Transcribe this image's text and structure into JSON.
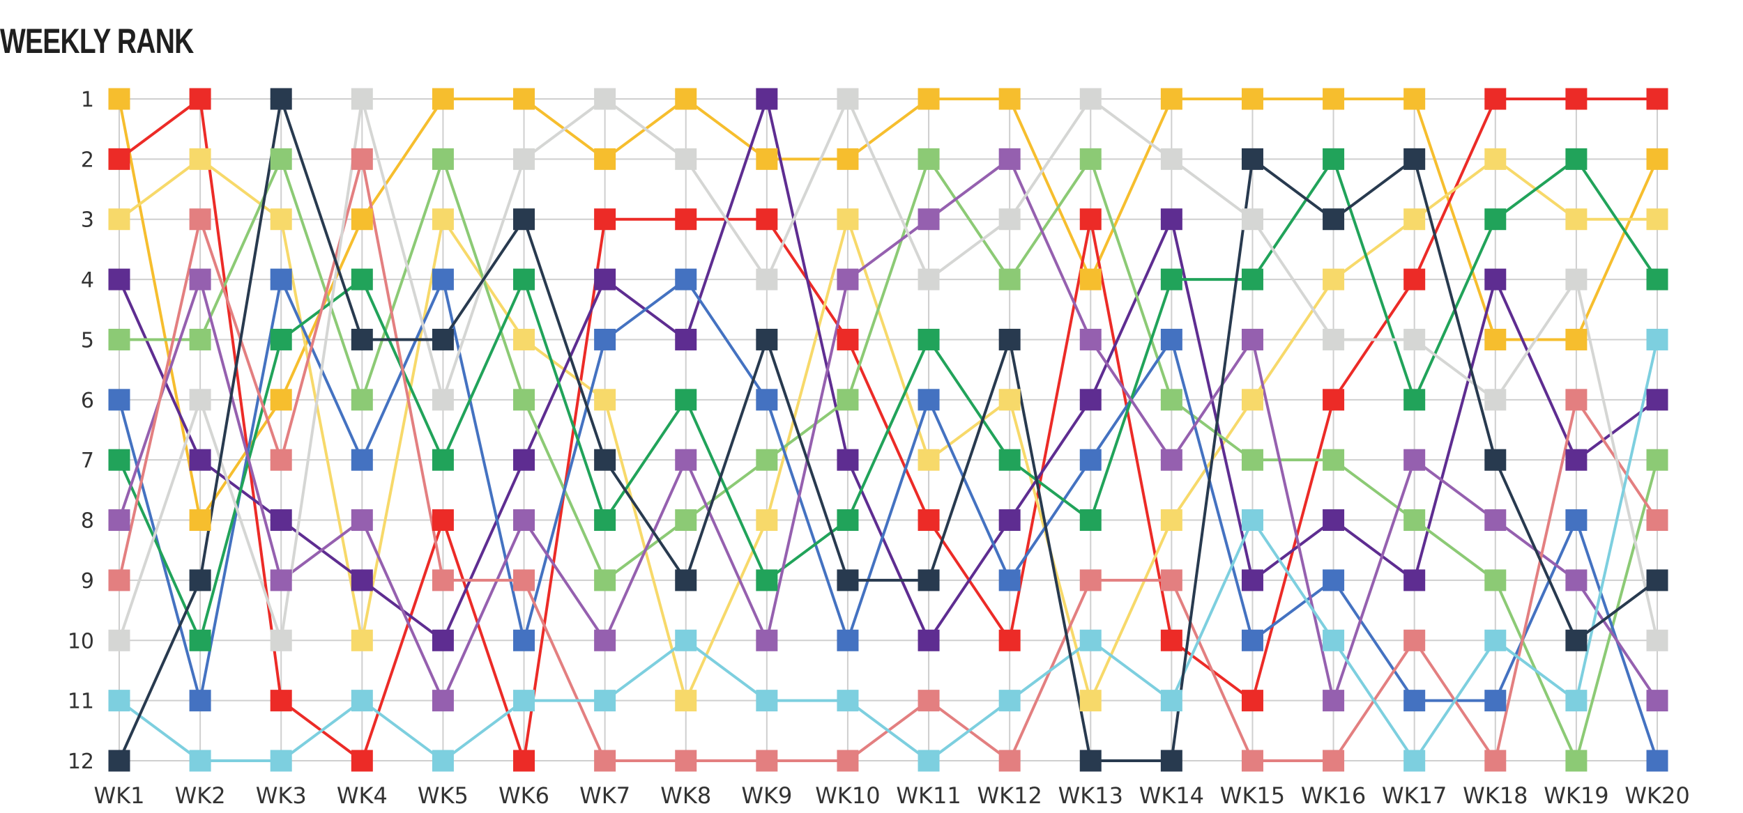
{
  "chart_data": {
    "type": "line",
    "title": "WEEKLY RANK",
    "y_inverted": true,
    "ylim": [
      1,
      12
    ],
    "yticks": [
      "1",
      "2",
      "3",
      "4",
      "5",
      "6",
      "7",
      "8",
      "9",
      "10",
      "11",
      "12"
    ],
    "categories": [
      "WK1",
      "WK2",
      "WK3",
      "WK4",
      "WK5",
      "WK6",
      "WK7",
      "WK8",
      "WK9",
      "WK10",
      "WK11",
      "WK12",
      "WK13",
      "WK14",
      "WK15",
      "WK16",
      "WK17",
      "WK18",
      "WK19",
      "WK20"
    ],
    "grid": true,
    "marker": "square",
    "series": [
      {
        "color": "#F6BE2E",
        "values": [
          1,
          8,
          6,
          3,
          1,
          1,
          2,
          1,
          2,
          2,
          1,
          1,
          4,
          1,
          1,
          1,
          1,
          5,
          5,
          2
        ]
      },
      {
        "color": "#EC2B27",
        "values": [
          2,
          1,
          11,
          12,
          8,
          12,
          3,
          3,
          3,
          5,
          8,
          10,
          3,
          10,
          11,
          6,
          4,
          1,
          1,
          1
        ]
      },
      {
        "color": "#F7D96A",
        "values": [
          3,
          2,
          3,
          10,
          3,
          5,
          6,
          11,
          8,
          3,
          7,
          6,
          11,
          8,
          6,
          4,
          3,
          2,
          3,
          3
        ]
      },
      {
        "color": "#5E2D91",
        "values": [
          4,
          7,
          8,
          9,
          10,
          7,
          4,
          5,
          1,
          7,
          10,
          8,
          6,
          3,
          9,
          8,
          9,
          4,
          7,
          6
        ]
      },
      {
        "color": "#8CCA75",
        "values": [
          5,
          5,
          2,
          6,
          2,
          6,
          9,
          8,
          7,
          6,
          2,
          4,
          2,
          6,
          7,
          7,
          8,
          9,
          12,
          7
        ]
      },
      {
        "color": "#4472C1",
        "values": [
          6,
          11,
          4,
          7,
          4,
          10,
          5,
          4,
          6,
          10,
          6,
          9,
          7,
          5,
          10,
          9,
          11,
          11,
          8,
          12
        ]
      },
      {
        "color": "#21A35A",
        "values": [
          7,
          10,
          5,
          4,
          7,
          4,
          8,
          6,
          9,
          8,
          5,
          7,
          8,
          4,
          4,
          2,
          6,
          3,
          2,
          4
        ]
      },
      {
        "color": "#9560AF",
        "values": [
          8,
          4,
          9,
          8,
          11,
          8,
          10,
          7,
          10,
          4,
          3,
          2,
          5,
          7,
          5,
          11,
          7,
          8,
          9,
          11
        ]
      },
      {
        "color": "#E37F80",
        "values": [
          9,
          3,
          7,
          2,
          9,
          9,
          12,
          12,
          12,
          12,
          11,
          12,
          9,
          9,
          12,
          12,
          10,
          12,
          6,
          8
        ]
      },
      {
        "color": "#D5D6D4",
        "values": [
          10,
          6,
          10,
          1,
          6,
          2,
          1,
          2,
          4,
          1,
          4,
          3,
          1,
          2,
          3,
          5,
          5,
          6,
          4,
          10
        ]
      },
      {
        "color": "#7DCFDF",
        "values": [
          11,
          12,
          12,
          11,
          12,
          11,
          11,
          10,
          11,
          11,
          12,
          11,
          10,
          11,
          8,
          10,
          12,
          10,
          11,
          5
        ]
      },
      {
        "color": "#283A4F",
        "values": [
          12,
          9,
          1,
          5,
          5,
          3,
          7,
          9,
          5,
          9,
          9,
          5,
          12,
          12,
          2,
          3,
          2,
          7,
          10,
          9
        ]
      }
    ]
  }
}
